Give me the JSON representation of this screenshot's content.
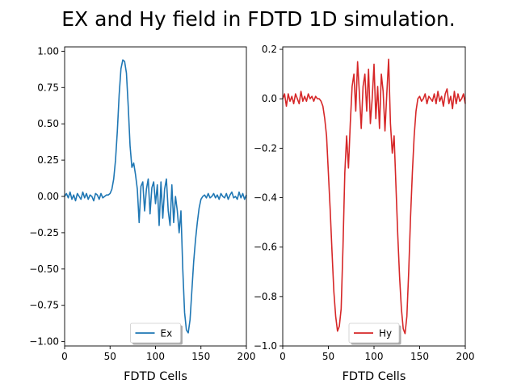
{
  "figure": {
    "title": "EX and Hy field in FDTD 1D simulation."
  },
  "chart_data": [
    {
      "type": "line",
      "title": "",
      "xlabel": "FDTD Cells",
      "ylabel": "",
      "xlim": [
        0,
        200
      ],
      "ylim": [
        -1.03,
        1.03
      ],
      "xticks": [
        0,
        50,
        100,
        150,
        200
      ],
      "xtick_labels": [
        "0",
        "50",
        "100",
        "150",
        "200"
      ],
      "yticks": [
        1.0,
        0.75,
        0.5,
        0.25,
        0.0,
        -0.25,
        -0.5,
        -0.75,
        -1.0
      ],
      "ytick_labels": [
        "1.00",
        "0.75",
        "0.50",
        "0.25",
        "0.00",
        "−0.25",
        "−0.50",
        "−0.75",
        "−1.00"
      ],
      "grid": false,
      "legend": {
        "location": "lower center",
        "shadow": true
      },
      "series": [
        {
          "name": "Ex",
          "color": "#1f77b4",
          "x": [
            0,
            2,
            4,
            6,
            8,
            10,
            12,
            14,
            16,
            18,
            20,
            22,
            24,
            26,
            28,
            30,
            32,
            34,
            36,
            38,
            40,
            42,
            44,
            46,
            48,
            50,
            52,
            54,
            56,
            58,
            60,
            62,
            64,
            66,
            68,
            70,
            72,
            74,
            76,
            78,
            80,
            82,
            84,
            86,
            88,
            90,
            92,
            94,
            96,
            98,
            100,
            102,
            104,
            106,
            108,
            110,
            112,
            114,
            116,
            118,
            120,
            122,
            124,
            126,
            128,
            130,
            132,
            134,
            136,
            138,
            140,
            142,
            144,
            146,
            148,
            150,
            152,
            154,
            156,
            158,
            160,
            162,
            164,
            166,
            168,
            170,
            172,
            174,
            176,
            178,
            180,
            182,
            184,
            186,
            188,
            190,
            192,
            194,
            196,
            198,
            200
          ],
          "y": [
            0.0,
            0.02,
            -0.01,
            0.03,
            -0.02,
            0.01,
            -0.03,
            0.02,
            0.0,
            -0.02,
            0.03,
            -0.01,
            0.02,
            -0.02,
            0.01,
            0.0,
            -0.03,
            0.02,
            0.01,
            -0.02,
            0.02,
            -0.01,
            0.0,
            0.01,
            0.01,
            0.02,
            0.05,
            0.12,
            0.25,
            0.45,
            0.7,
            0.88,
            0.94,
            0.93,
            0.85,
            0.62,
            0.35,
            0.2,
            0.23,
            0.15,
            0.05,
            -0.18,
            0.07,
            0.1,
            -0.1,
            0.05,
            0.12,
            -0.12,
            0.06,
            0.1,
            -0.05,
            0.08,
            -0.2,
            0.1,
            -0.15,
            0.05,
            0.12,
            -0.1,
            -0.2,
            0.08,
            -0.18,
            0.0,
            -0.1,
            -0.25,
            -0.1,
            -0.5,
            -0.8,
            -0.92,
            -0.94,
            -0.85,
            -0.65,
            -0.45,
            -0.3,
            -0.18,
            -0.08,
            -0.02,
            0.0,
            0.01,
            -0.01,
            0.02,
            -0.01,
            0.0,
            0.02,
            -0.01,
            0.01,
            -0.02,
            0.02,
            0.0,
            -0.01,
            0.02,
            -0.02,
            0.01,
            0.03,
            -0.01,
            0.0,
            -0.02,
            0.03,
            -0.01,
            0.02,
            -0.02,
            0.01
          ]
        }
      ]
    },
    {
      "type": "line",
      "title": "",
      "xlabel": "FDTD Cells",
      "ylabel": "",
      "xlim": [
        0,
        200
      ],
      "ylim": [
        -1.0,
        0.21
      ],
      "xticks": [
        0,
        50,
        100,
        150,
        200
      ],
      "xtick_labels": [
        "0",
        "50",
        "100",
        "150",
        "200"
      ],
      "yticks": [
        0.2,
        0.0,
        -0.2,
        -0.4,
        -0.6,
        -0.8,
        -1.0
      ],
      "ytick_labels": [
        "0.2",
        "0.0",
        "−0.2",
        "−0.4",
        "−0.6",
        "−0.8",
        "−1.0"
      ],
      "grid": false,
      "legend": {
        "location": "lower center",
        "shadow": true
      },
      "series": [
        {
          "name": "Hy",
          "color": "#d62728",
          "x": [
            0,
            2,
            4,
            6,
            8,
            10,
            12,
            14,
            16,
            18,
            20,
            22,
            24,
            26,
            28,
            30,
            32,
            34,
            36,
            38,
            40,
            42,
            44,
            46,
            48,
            50,
            52,
            54,
            56,
            58,
            60,
            62,
            64,
            66,
            68,
            70,
            72,
            74,
            76,
            78,
            80,
            82,
            84,
            86,
            88,
            90,
            92,
            94,
            96,
            98,
            100,
            102,
            104,
            106,
            108,
            110,
            112,
            114,
            116,
            118,
            120,
            122,
            124,
            126,
            128,
            130,
            132,
            134,
            136,
            138,
            140,
            142,
            144,
            146,
            148,
            150,
            152,
            154,
            156,
            158,
            160,
            162,
            164,
            166,
            168,
            170,
            172,
            174,
            176,
            178,
            180,
            182,
            184,
            186,
            188,
            190,
            192,
            194,
            196,
            198,
            200
          ],
          "y": [
            0.0,
            0.02,
            -0.03,
            0.02,
            -0.01,
            0.01,
            -0.02,
            0.02,
            0.0,
            -0.02,
            0.03,
            -0.01,
            0.01,
            -0.01,
            0.02,
            0.0,
            0.01,
            -0.01,
            0.01,
            0.0,
            0.0,
            -0.01,
            -0.03,
            -0.08,
            -0.15,
            -0.3,
            -0.45,
            -0.62,
            -0.78,
            -0.88,
            -0.94,
            -0.92,
            -0.85,
            -0.6,
            -0.3,
            -0.15,
            -0.28,
            -0.1,
            0.05,
            0.1,
            -0.05,
            0.15,
            0.02,
            -0.12,
            0.05,
            0.1,
            -0.05,
            0.12,
            -0.1,
            0.0,
            0.14,
            -0.08,
            0.05,
            -0.12,
            0.1,
            0.03,
            -0.13,
            0.02,
            0.16,
            -0.1,
            -0.22,
            -0.15,
            -0.35,
            -0.55,
            -0.72,
            -0.85,
            -0.93,
            -0.95,
            -0.88,
            -0.7,
            -0.48,
            -0.3,
            -0.15,
            -0.05,
            0.0,
            0.01,
            -0.01,
            0.0,
            0.02,
            -0.02,
            0.01,
            0.0,
            -0.01,
            0.02,
            -0.02,
            0.03,
            -0.01,
            0.01,
            -0.03,
            0.02,
            0.04,
            -0.02,
            0.01,
            -0.04,
            0.03,
            -0.02,
            0.02,
            -0.01,
            0.0,
            0.02,
            -0.02
          ]
        }
      ]
    }
  ]
}
